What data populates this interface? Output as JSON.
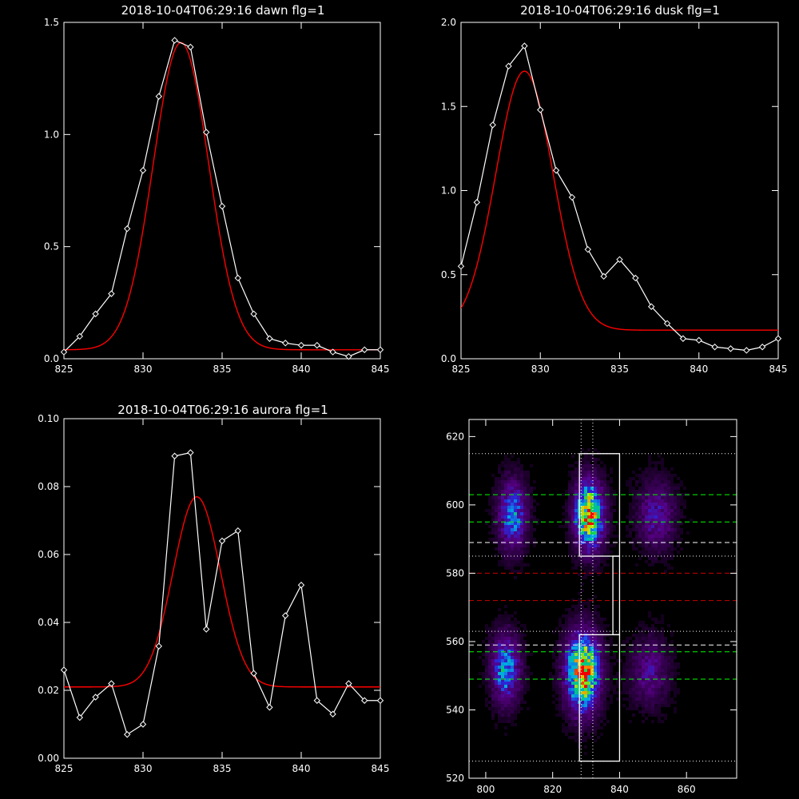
{
  "chart_data": [
    {
      "type": "line",
      "title": "2018-10-04T06:29:16 dawn flg=1",
      "xlim": [
        825,
        845
      ],
      "ylim": [
        0,
        1.5
      ],
      "xticks": [
        825,
        830,
        835,
        840,
        845
      ],
      "yticks": [
        0.0,
        0.5,
        1.0,
        1.5
      ],
      "ytick_labels": [
        "0.0",
        "0.5",
        "1.0",
        "1.5"
      ],
      "data_series": {
        "x": [
          825,
          826,
          827,
          828,
          829,
          830,
          831,
          832,
          833,
          834,
          835,
          836,
          837,
          838,
          839,
          840,
          841,
          842,
          843,
          844,
          845
        ],
        "y": [
          0.03,
          0.1,
          0.2,
          0.29,
          0.58,
          0.84,
          1.17,
          1.42,
          1.39,
          1.01,
          0.68,
          0.36,
          0.2,
          0.09,
          0.07,
          0.06,
          0.06,
          0.03,
          0.01,
          0.04,
          0.04
        ]
      },
      "fit_params": {
        "peak": 1.37,
        "center": 832.4,
        "sigma": 1.75,
        "baseline": 0.04
      },
      "series_colors": {
        "data": "#ffffff",
        "fit": "#ff0000"
      }
    },
    {
      "type": "line",
      "title": "2018-10-04T06:29:16 dusk flg=1",
      "xlim": [
        825,
        845
      ],
      "ylim": [
        0,
        2.0
      ],
      "xticks": [
        825,
        830,
        835,
        840,
        845
      ],
      "yticks": [
        0.0,
        0.5,
        1.0,
        1.5,
        2.0
      ],
      "ytick_labels": [
        "0.0",
        "0.5",
        "1.0",
        "1.5",
        "2.0"
      ],
      "data_series": {
        "x": [
          825,
          826,
          827,
          828,
          829,
          830,
          831,
          832,
          833,
          834,
          835,
          836,
          837,
          838,
          839,
          840,
          841,
          842,
          843,
          844,
          845
        ],
        "y": [
          0.55,
          0.93,
          1.39,
          1.74,
          1.86,
          1.48,
          1.12,
          0.96,
          0.65,
          0.49,
          0.59,
          0.48,
          0.31,
          0.21,
          0.12,
          0.11,
          0.07,
          0.06,
          0.05,
          0.07,
          0.12
        ]
      },
      "fit_params": {
        "peak": 1.54,
        "center": 829.0,
        "sigma": 1.8,
        "baseline": 0.17
      },
      "series_colors": {
        "data": "#ffffff",
        "fit": "#ff0000"
      }
    },
    {
      "type": "line",
      "title": "2018-10-04T06:29:16 aurora flg=1",
      "xlim": [
        825,
        845
      ],
      "ylim": [
        0,
        0.1
      ],
      "xticks": [
        825,
        830,
        835,
        840,
        845
      ],
      "yticks": [
        0.0,
        0.02,
        0.04,
        0.06,
        0.08,
        0.1
      ],
      "ytick_labels": [
        "0.00",
        "0.02",
        "0.04",
        "0.06",
        "0.08",
        "0.10"
      ],
      "data_series": {
        "x": [
          825,
          826,
          827,
          828,
          829,
          830,
          831,
          832,
          833,
          834,
          835,
          836,
          837,
          838,
          839,
          840,
          841,
          842,
          843,
          844,
          845
        ],
        "y": [
          0.026,
          0.012,
          0.018,
          0.022,
          0.007,
          0.01,
          0.033,
          0.089,
          0.09,
          0.038,
          0.064,
          0.067,
          0.025,
          0.015,
          0.042,
          0.051,
          0.017,
          0.013,
          0.022,
          0.017,
          0.017
        ]
      },
      "fit_params": {
        "peak": 0.056,
        "center": 833.4,
        "sigma": 1.5,
        "baseline": 0.021
      },
      "series_colors": {
        "data": "#ffffff",
        "fit": "#ff0000"
      }
    },
    {
      "type": "heatmap",
      "title": "",
      "xlim": [
        795,
        875
      ],
      "ylim": [
        520,
        625
      ],
      "xticks": [
        800,
        820,
        840,
        860
      ],
      "yticks": [
        520,
        540,
        560,
        580,
        600,
        620
      ],
      "blobs": [
        {
          "cx": 808,
          "cy": 597,
          "sx": 3,
          "sy": 7,
          "amp": 0.55
        },
        {
          "cx": 831,
          "cy": 597,
          "sx": 3,
          "sy": 7,
          "amp": 0.95
        },
        {
          "cx": 851,
          "cy": 597,
          "sx": 4,
          "sy": 7,
          "amp": 0.35
        },
        {
          "cx": 806,
          "cy": 552,
          "sx": 3,
          "sy": 7,
          "amp": 0.6
        },
        {
          "cx": 829,
          "cy": 551,
          "sx": 3.5,
          "sy": 8,
          "amp": 1.0
        },
        {
          "cx": 849,
          "cy": 551,
          "sx": 4,
          "sy": 7,
          "amp": 0.3
        }
      ],
      "boxes": [
        {
          "x0": 828,
          "x1": 840,
          "y0": 585,
          "y1": 615
        },
        {
          "x0": 828,
          "x1": 840,
          "y0": 525,
          "y1": 562
        }
      ],
      "connector": {
        "x0": 838,
        "x1": 840,
        "y0": 562,
        "y1": 585
      },
      "hlines": [
        {
          "y": 615,
          "color": "#ffffff",
          "style": "dotted"
        },
        {
          "y": 603,
          "color": "#00ff00",
          "style": "dashed"
        },
        {
          "y": 595,
          "color": "#00ff00",
          "style": "dashed"
        },
        {
          "y": 589,
          "color": "#ffffff",
          "style": "dashed"
        },
        {
          "y": 585,
          "color": "#ffffff",
          "style": "dotted"
        },
        {
          "y": 580,
          "color": "#cc0000",
          "style": "dashed"
        },
        {
          "y": 572,
          "color": "#cc0000",
          "style": "dashed"
        },
        {
          "y": 563,
          "color": "#ffffff",
          "style": "dotted"
        },
        {
          "y": 559,
          "color": "#ffffff",
          "style": "dashed"
        },
        {
          "y": 557,
          "color": "#00ff00",
          "style": "dashed"
        },
        {
          "y": 549,
          "color": "#00ff00",
          "style": "dashed"
        },
        {
          "y": 525,
          "color": "#ffffff",
          "style": "dotted"
        }
      ],
      "vlines": [
        {
          "x": 828.5,
          "color": "#ffffff",
          "style": "dotted"
        },
        {
          "x": 832,
          "color": "#ffffff",
          "style": "dotted"
        }
      ]
    }
  ]
}
